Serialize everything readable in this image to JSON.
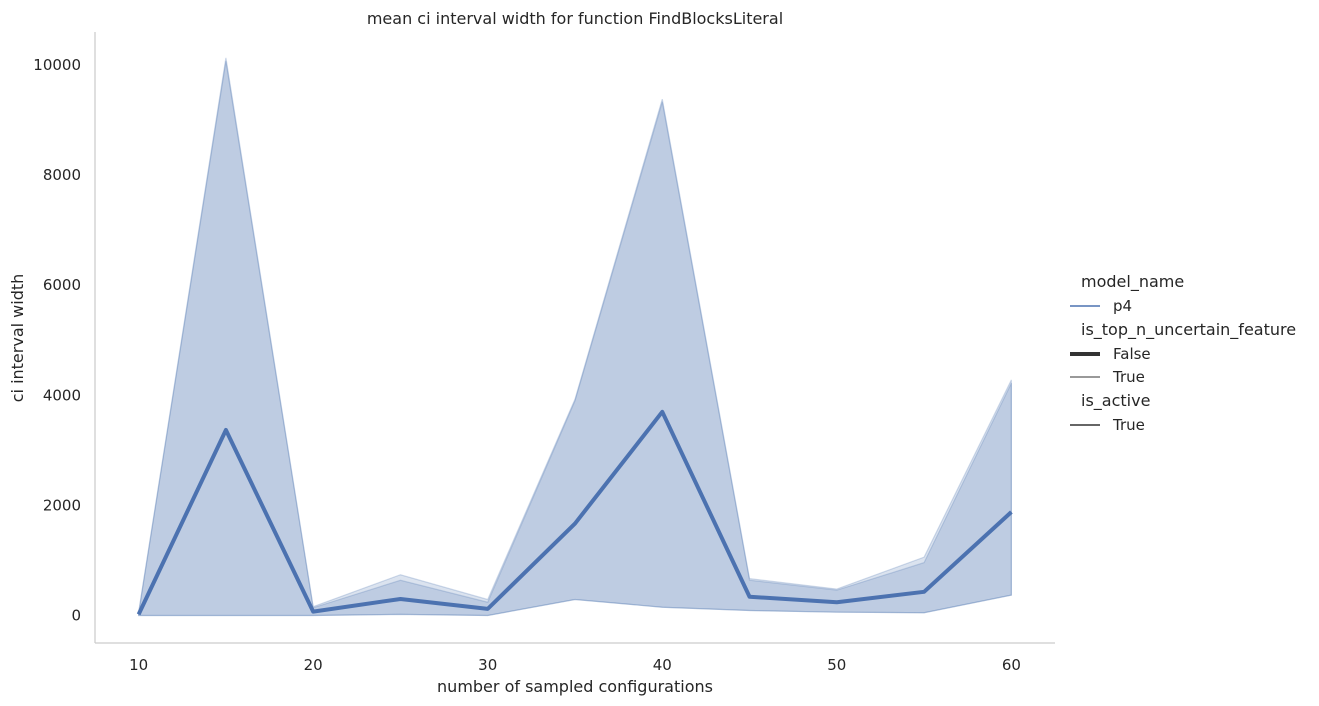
{
  "chart_data": {
    "type": "line",
    "title": "mean ci interval width for function FindBlocksLiteral",
    "xlabel": "number of sampled configurations",
    "ylabel": "ci interval width",
    "xlim": [
      7.5,
      62.5
    ],
    "ylim": [
      -500,
      10600
    ],
    "x_ticks": [
      10,
      20,
      30,
      40,
      50,
      60
    ],
    "x_tick_labels": [
      "10",
      "20",
      "30",
      "40",
      "50",
      "60"
    ],
    "y_ticks": [
      0,
      2000,
      4000,
      6000,
      8000,
      10000
    ],
    "y_tick_labels": [
      "0",
      "2000",
      "4000",
      "6000",
      "8000",
      "10000"
    ],
    "grid": false,
    "legend_position": "right",
    "colors": {
      "line": "#4c72b0",
      "band": "#4c72b0",
      "axis": "#cccccc",
      "legend_dark": "#333333"
    },
    "series": [
      {
        "model_name": "p4",
        "is_top_n_uncertain_feature": "False",
        "is_active": "True",
        "x": [
          10,
          15,
          20,
          25,
          30,
          35,
          40,
          45,
          50,
          55,
          60
        ],
        "y": [
          20,
          3370,
          70,
          300,
          120,
          1670,
          3700,
          340,
          240,
          430,
          1880
        ],
        "ci_low": [
          0,
          0,
          0,
          20,
          0,
          290,
          150,
          90,
          60,
          50,
          370
        ],
        "ci_high": [
          40,
          10070,
          140,
          640,
          240,
          3900,
          9330,
          640,
          460,
          960,
          4220
        ]
      },
      {
        "model_name": "p4",
        "is_top_n_uncertain_feature": "True",
        "is_active": "True",
        "x": [
          10,
          15,
          20,
          25,
          30,
          35,
          40,
          45,
          50,
          55,
          60
        ],
        "y": [
          20,
          3370,
          70,
          300,
          120,
          1670,
          3700,
          340,
          240,
          430,
          1880
        ],
        "ci_low": [
          0,
          0,
          0,
          20,
          0,
          290,
          150,
          90,
          60,
          50,
          370
        ],
        "ci_high": [
          60,
          10130,
          160,
          740,
          290,
          3930,
          9380,
          670,
          480,
          1060,
          4280
        ]
      }
    ],
    "legend": {
      "sections": [
        {
          "title": "model_name",
          "entries": [
            {
              "label": "p4",
              "style": "color"
            }
          ]
        },
        {
          "title": "is_top_n_uncertain_feature",
          "entries": [
            {
              "label": "False",
              "style": "thick"
            },
            {
              "label": "True",
              "style": "thin"
            }
          ]
        },
        {
          "title": "is_active",
          "entries": [
            {
              "label": "True",
              "style": "solid"
            }
          ]
        }
      ]
    }
  }
}
